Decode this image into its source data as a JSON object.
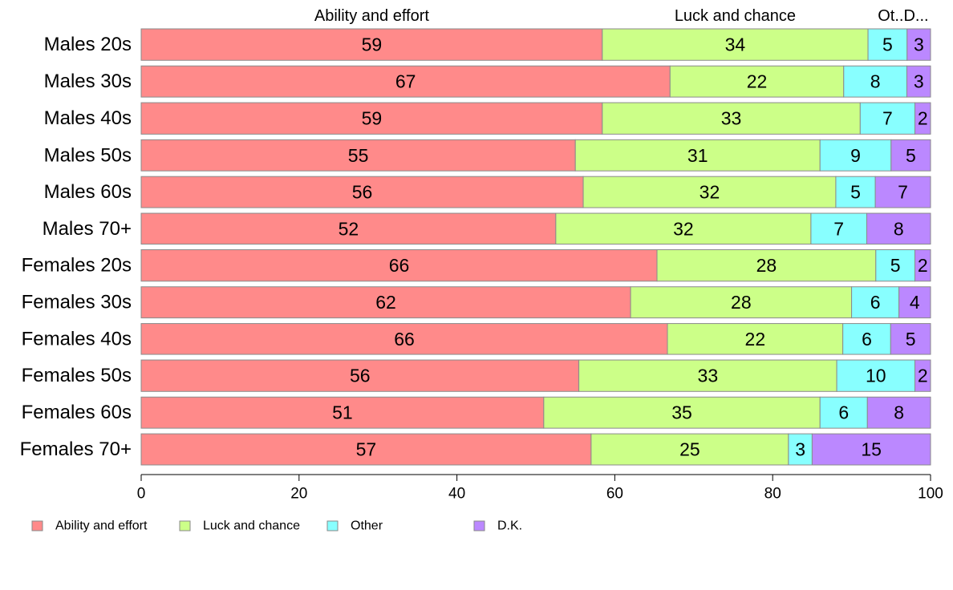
{
  "chart_data": {
    "type": "bar",
    "orientation": "horizontal",
    "stacked": true,
    "categories": [
      "Males 20s",
      "Males 30s",
      "Males 40s",
      "Males 50s",
      "Males 60s",
      "Males 70+",
      "Females 20s",
      "Females 30s",
      "Females 40s",
      "Females 50s",
      "Females 60s",
      "Females 70+"
    ],
    "series": [
      {
        "name": "Ability and effort",
        "color": "#ff8a8a",
        "values": [
          59,
          67,
          59,
          55,
          56,
          52,
          66,
          62,
          66,
          56,
          51,
          57
        ]
      },
      {
        "name": "Luck and chance",
        "color": "#ccff88",
        "values": [
          34,
          22,
          33,
          31,
          32,
          32,
          28,
          28,
          22,
          33,
          35,
          25
        ]
      },
      {
        "name": "Other",
        "color": "#88ffff",
        "values": [
          5,
          8,
          7,
          9,
          5,
          7,
          5,
          6,
          6,
          10,
          6,
          3
        ]
      },
      {
        "name": "D.K.",
        "color": "#bb88ff",
        "values": [
          3,
          3,
          2,
          5,
          7,
          8,
          2,
          4,
          5,
          2,
          8,
          15
        ]
      }
    ],
    "top_labels": [
      "Ability and effort",
      "Luck and chance",
      "Ot..D..."
    ],
    "x_ticks": [
      "0",
      "20",
      "40",
      "60",
      "80",
      "100"
    ],
    "xlim": [
      0,
      100
    ],
    "grid": false,
    "legend_position": "bottom-left"
  }
}
